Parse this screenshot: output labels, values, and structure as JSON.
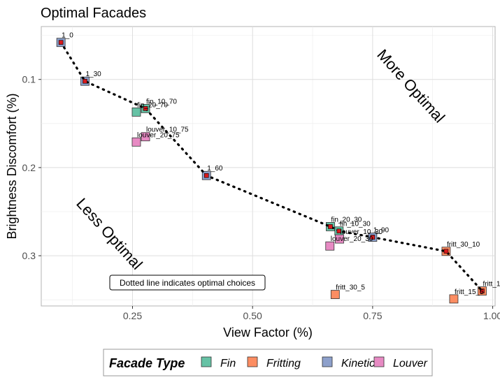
{
  "chart_data": {
    "type": "scatter",
    "title": "Optimal Facades",
    "xlabel": "View Factor (%)",
    "ylabel": "Brightness Discomfort (%)",
    "xlim": [
      0.06,
      1.005
    ],
    "ylim": [
      0.357,
      0.04
    ],
    "y_reversed": true,
    "x_ticks": [
      0.25,
      0.5,
      0.75,
      1.0
    ],
    "x_tick_labels": [
      "0.25",
      "0.50",
      "0.75",
      "1.00"
    ],
    "y_ticks": [
      0.1,
      0.2,
      0.3
    ],
    "y_tick_labels": [
      "0.1",
      "0.2",
      "0.3"
    ],
    "grid": true,
    "legend": {
      "title": "Facade Type",
      "position": "bottom",
      "entries": [
        {
          "name": "Fin",
          "color": "#66c2a5"
        },
        {
          "name": "Fritting",
          "color": "#fc8d62"
        },
        {
          "name": "Kinetic",
          "color": "#8da0cb"
        },
        {
          "name": "Louver",
          "color": "#e78ac3"
        }
      ]
    },
    "series": [
      {
        "name": "Fin",
        "color": "#66c2a5",
        "points": [
          {
            "label": "fin_10_70",
            "x": 0.277,
            "y": 0.133
          },
          {
            "label": "fin_20_70",
            "x": 0.258,
            "y": 0.137
          },
          {
            "label": "fin_20_30",
            "x": 0.662,
            "y": 0.267
          },
          {
            "label": "fin_10_30",
            "x": 0.68,
            "y": 0.272
          }
        ]
      },
      {
        "name": "Fritting",
        "color": "#fc8d62",
        "points": [
          {
            "label": "fritt_30_10",
            "x": 0.903,
            "y": 0.295
          },
          {
            "label": "fritt_1",
            "x": 0.978,
            "y": 0.34
          },
          {
            "label": "fritt_15_5",
            "x": 0.919,
            "y": 0.349
          },
          {
            "label": "fritt_30_5",
            "x": 0.672,
            "y": 0.344
          }
        ]
      },
      {
        "name": "Kinetic",
        "color": "#8da0cb",
        "points": [
          {
            "label": "1_0",
            "x": 0.101,
            "y": 0.058
          },
          {
            "label": "1_30",
            "x": 0.151,
            "y": 0.102
          },
          {
            "label": "1_60",
            "x": 0.404,
            "y": 0.209
          },
          {
            "label": "1_90",
            "x": 0.75,
            "y": 0.279
          }
        ]
      },
      {
        "name": "Louver",
        "color": "#e78ac3",
        "points": [
          {
            "label": "louver_10_75",
            "x": 0.277,
            "y": 0.165
          },
          {
            "label": "louver_20_75",
            "x": 0.258,
            "y": 0.171
          },
          {
            "label": "louver_10_30",
            "x": 0.681,
            "y": 0.281
          },
          {
            "label": "louver_20_30",
            "x": 0.661,
            "y": 0.289
          }
        ]
      }
    ],
    "optimal_path": [
      {
        "x": 0.101,
        "y": 0.058
      },
      {
        "x": 0.151,
        "y": 0.102
      },
      {
        "x": 0.277,
        "y": 0.133
      },
      {
        "x": 0.404,
        "y": 0.209
      },
      {
        "x": 0.662,
        "y": 0.267
      },
      {
        "x": 0.68,
        "y": 0.272
      },
      {
        "x": 0.75,
        "y": 0.279
      },
      {
        "x": 0.903,
        "y": 0.295
      },
      {
        "x": 0.978,
        "y": 0.34
      }
    ],
    "region_labels": {
      "top": "More Optimal",
      "bottom": "Less Optimal"
    },
    "note": "Dotted line indicates optimal choices"
  }
}
